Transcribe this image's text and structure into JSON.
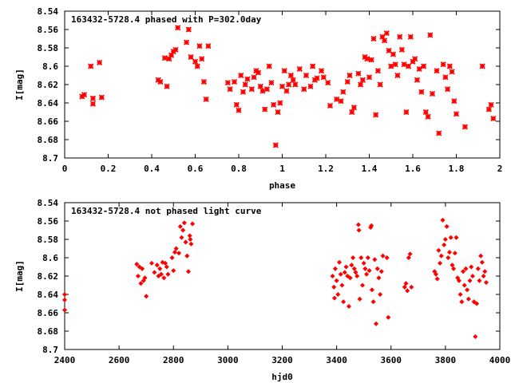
{
  "chart_data": [
    {
      "type": "scatter",
      "title": "163432-5728.4 phased with P=302.0day",
      "xlabel": "phase",
      "ylabel": "I[mag]",
      "xlim": [
        0,
        2
      ],
      "ylim": [
        8.54,
        8.7
      ],
      "y_inverted": true,
      "x_ticks": [
        "0",
        "0.2",
        "0.4",
        "0.6",
        "0.8",
        "1",
        "1.2",
        "1.4",
        "1.6",
        "1.8",
        "2"
      ],
      "y_ticks": [
        "8.54",
        "8.56",
        "8.58",
        "8.6",
        "8.62",
        "8.64",
        "8.66",
        "8.68",
        "8.7"
      ],
      "grid": false,
      "marker": "star",
      "color": "#ff0000",
      "points": [
        [
          0.08,
          8.633
        ],
        [
          0.09,
          8.631
        ],
        [
          0.12,
          8.6
        ],
        [
          0.13,
          8.635
        ],
        [
          0.13,
          8.641
        ],
        [
          0.16,
          8.596
        ],
        [
          0.17,
          8.634
        ],
        [
          0.43,
          8.615
        ],
        [
          0.44,
          8.617
        ],
        [
          0.46,
          8.591
        ],
        [
          0.47,
          8.622
        ],
        [
          0.48,
          8.592
        ],
        [
          0.49,
          8.588
        ],
        [
          0.5,
          8.584
        ],
        [
          0.51,
          8.582
        ],
        [
          0.52,
          8.558
        ],
        [
          0.56,
          8.574
        ],
        [
          0.57,
          8.56
        ],
        [
          0.58,
          8.59
        ],
        [
          0.6,
          8.595
        ],
        [
          0.61,
          8.6
        ],
        [
          0.62,
          8.578
        ],
        [
          0.63,
          8.592
        ],
        [
          0.64,
          8.617
        ],
        [
          0.65,
          8.636
        ],
        [
          0.66,
          8.578
        ],
        [
          0.75,
          8.618
        ],
        [
          0.76,
          8.625
        ],
        [
          0.78,
          8.617
        ],
        [
          0.79,
          8.642
        ],
        [
          0.8,
          8.648
        ],
        [
          0.81,
          8.61
        ],
        [
          0.82,
          8.628
        ],
        [
          0.83,
          8.62
        ],
        [
          0.84,
          8.614
        ],
        [
          0.86,
          8.625
        ],
        [
          0.87,
          8.612
        ],
        [
          0.88,
          8.605
        ],
        [
          0.89,
          8.607
        ],
        [
          0.9,
          8.622
        ],
        [
          0.91,
          8.627
        ],
        [
          0.92,
          8.647
        ],
        [
          0.93,
          8.625
        ],
        [
          0.94,
          8.6
        ],
        [
          0.95,
          8.618
        ],
        [
          0.96,
          8.642
        ],
        [
          0.97,
          8.686
        ],
        [
          0.98,
          8.65
        ],
        [
          0.99,
          8.64
        ],
        [
          1.0,
          8.622
        ],
        [
          1.01,
          8.605
        ],
        [
          1.02,
          8.627
        ],
        [
          1.03,
          8.62
        ],
        [
          1.04,
          8.61
        ],
        [
          1.05,
          8.615
        ],
        [
          1.06,
          8.62
        ],
        [
          1.08,
          8.603
        ],
        [
          1.1,
          8.625
        ],
        [
          1.11,
          8.61
        ],
        [
          1.13,
          8.622
        ],
        [
          1.14,
          8.6
        ],
        [
          1.15,
          8.615
        ],
        [
          1.16,
          8.613
        ],
        [
          1.18,
          8.605
        ],
        [
          1.19,
          8.612
        ],
        [
          1.21,
          8.618
        ],
        [
          1.22,
          8.643
        ],
        [
          1.25,
          8.636
        ],
        [
          1.27,
          8.638
        ],
        [
          1.28,
          8.628
        ],
        [
          1.3,
          8.617
        ],
        [
          1.31,
          8.61
        ],
        [
          1.32,
          8.65
        ],
        [
          1.33,
          8.645
        ],
        [
          1.35,
          8.608
        ],
        [
          1.36,
          8.62
        ],
        [
          1.37,
          8.615
        ],
        [
          1.38,
          8.59
        ],
        [
          1.39,
          8.592
        ],
        [
          1.4,
          8.612
        ],
        [
          1.41,
          8.593
        ],
        [
          1.42,
          8.57
        ],
        [
          1.43,
          8.653
        ],
        [
          1.44,
          8.605
        ],
        [
          1.45,
          8.62
        ],
        [
          1.46,
          8.568
        ],
        [
          1.47,
          8.572
        ],
        [
          1.48,
          8.564
        ],
        [
          1.49,
          8.583
        ],
        [
          1.5,
          8.6
        ],
        [
          1.51,
          8.587
        ],
        [
          1.52,
          8.598
        ],
        [
          1.53,
          8.61
        ],
        [
          1.54,
          8.568
        ],
        [
          1.55,
          8.582
        ],
        [
          1.56,
          8.598
        ],
        [
          1.57,
          8.65
        ],
        [
          1.58,
          8.6
        ],
        [
          1.59,
          8.568
        ],
        [
          1.6,
          8.595
        ],
        [
          1.61,
          8.592
        ],
        [
          1.62,
          8.615
        ],
        [
          1.63,
          8.603
        ],
        [
          1.64,
          8.628
        ],
        [
          1.65,
          8.6
        ],
        [
          1.66,
          8.65
        ],
        [
          1.67,
          8.655
        ],
        [
          1.68,
          8.566
        ],
        [
          1.69,
          8.63
        ],
        [
          1.71,
          8.605
        ],
        [
          1.72,
          8.673
        ],
        [
          1.74,
          8.598
        ],
        [
          1.75,
          8.612
        ],
        [
          1.76,
          8.625
        ],
        [
          1.77,
          8.6
        ],
        [
          1.78,
          8.606
        ],
        [
          1.79,
          8.638
        ],
        [
          1.8,
          8.652
        ],
        [
          1.84,
          8.666
        ],
        [
          1.92,
          8.6
        ],
        [
          1.95,
          8.647
        ],
        [
          1.96,
          8.642
        ],
        [
          1.97,
          8.657
        ]
      ]
    },
    {
      "type": "scatter",
      "title": "163432-5728.4 not phased light curve",
      "xlabel": "hjd0",
      "ylabel": "I[mag]",
      "xlim": [
        2400,
        4000
      ],
      "ylim": [
        8.54,
        8.7
      ],
      "y_inverted": true,
      "x_ticks": [
        "2400",
        "2600",
        "2800",
        "3000",
        "3200",
        "3400",
        "3600",
        "3800",
        "4000"
      ],
      "y_ticks": [
        "8.54",
        "8.56",
        "8.58",
        "8.6",
        "8.62",
        "8.64",
        "8.66",
        "8.68",
        "8.7"
      ],
      "grid": false,
      "marker": "diamond",
      "color": "#ff0000",
      "points": [
        [
          2400,
          8.64
        ],
        [
          2400,
          8.646
        ],
        [
          2400,
          8.657
        ],
        [
          2665,
          8.607
        ],
        [
          2670,
          8.62
        ],
        [
          2675,
          8.61
        ],
        [
          2680,
          8.628
        ],
        [
          2685,
          8.612
        ],
        [
          2690,
          8.625
        ],
        [
          2695,
          8.622
        ],
        [
          2700,
          8.642
        ],
        [
          2720,
          8.606
        ],
        [
          2730,
          8.616
        ],
        [
          2740,
          8.608
        ],
        [
          2745,
          8.62
        ],
        [
          2750,
          8.612
        ],
        [
          2755,
          8.618
        ],
        [
          2760,
          8.605
        ],
        [
          2765,
          8.622
        ],
        [
          2770,
          8.606
        ],
        [
          2775,
          8.61
        ],
        [
          2780,
          8.618
        ],
        [
          2795,
          8.6
        ],
        [
          2800,
          8.614
        ],
        [
          2805,
          8.594
        ],
        [
          2810,
          8.59
        ],
        [
          2820,
          8.595
        ],
        [
          2825,
          8.566
        ],
        [
          2830,
          8.578
        ],
        [
          2835,
          8.57
        ],
        [
          2840,
          8.562
        ],
        [
          2845,
          8.583
        ],
        [
          2850,
          8.598
        ],
        [
          2855,
          8.615
        ],
        [
          2860,
          8.576
        ],
        [
          2862,
          8.58
        ],
        [
          2865,
          8.585
        ],
        [
          2870,
          8.563
        ],
        [
          3385,
          8.62
        ],
        [
          3390,
          8.632
        ],
        [
          3392,
          8.644
        ],
        [
          3395,
          8.612
        ],
        [
          3400,
          8.625
        ],
        [
          3405,
          8.64
        ],
        [
          3410,
          8.605
        ],
        [
          3415,
          8.618
        ],
        [
          3420,
          8.63
        ],
        [
          3425,
          8.648
        ],
        [
          3430,
          8.616
        ],
        [
          3435,
          8.61
        ],
        [
          3440,
          8.62
        ],
        [
          3445,
          8.653
        ],
        [
          3450,
          8.622
        ],
        [
          3455,
          8.608
        ],
        [
          3460,
          8.6
        ],
        [
          3465,
          8.612
        ],
        [
          3470,
          8.616
        ],
        [
          3475,
          8.62
        ],
        [
          3480,
          8.564
        ],
        [
          3482,
          8.57
        ],
        [
          3485,
          8.645
        ],
        [
          3490,
          8.6
        ],
        [
          3495,
          8.63
        ],
        [
          3500,
          8.606
        ],
        [
          3505,
          8.612
        ],
        [
          3510,
          8.618
        ],
        [
          3515,
          8.6
        ],
        [
          3520,
          8.614
        ],
        [
          3525,
          8.567
        ],
        [
          3528,
          8.565
        ],
        [
          3530,
          8.635
        ],
        [
          3535,
          8.648
        ],
        [
          3540,
          8.602
        ],
        [
          3545,
          8.672
        ],
        [
          3550,
          8.612
        ],
        [
          3555,
          8.622
        ],
        [
          3560,
          8.64
        ],
        [
          3565,
          8.615
        ],
        [
          3570,
          8.598
        ],
        [
          3585,
          8.6
        ],
        [
          3590,
          8.665
        ],
        [
          3650,
          8.632
        ],
        [
          3655,
          8.628
        ],
        [
          3660,
          8.636
        ],
        [
          3665,
          8.6
        ],
        [
          3670,
          8.596
        ],
        [
          3675,
          8.632
        ],
        [
          3760,
          8.615
        ],
        [
          3765,
          8.618
        ],
        [
          3770,
          8.623
        ],
        [
          3775,
          8.592
        ],
        [
          3780,
          8.606
        ],
        [
          3785,
          8.598
        ],
        [
          3790,
          8.559
        ],
        [
          3795,
          8.586
        ],
        [
          3800,
          8.58
        ],
        [
          3805,
          8.566
        ],
        [
          3810,
          8.6
        ],
        [
          3815,
          8.594
        ],
        [
          3820,
          8.578
        ],
        [
          3825,
          8.608
        ],
        [
          3830,
          8.612
        ],
        [
          3835,
          8.595
        ],
        [
          3840,
          8.578
        ],
        [
          3845,
          8.622
        ],
        [
          3850,
          8.625
        ],
        [
          3855,
          8.64
        ],
        [
          3860,
          8.648
        ],
        [
          3865,
          8.615
        ],
        [
          3870,
          8.63
        ],
        [
          3875,
          8.612
        ],
        [
          3880,
          8.635
        ],
        [
          3885,
          8.645
        ],
        [
          3890,
          8.625
        ],
        [
          3895,
          8.61
        ],
        [
          3900,
          8.62
        ],
        [
          3905,
          8.648
        ],
        [
          3910,
          8.686
        ],
        [
          3915,
          8.65
        ],
        [
          3920,
          8.612
        ],
        [
          3925,
          8.625
        ],
        [
          3930,
          8.598
        ],
        [
          3935,
          8.605
        ],
        [
          3940,
          8.62
        ],
        [
          3945,
          8.615
        ],
        [
          3950,
          8.627
        ]
      ]
    }
  ]
}
